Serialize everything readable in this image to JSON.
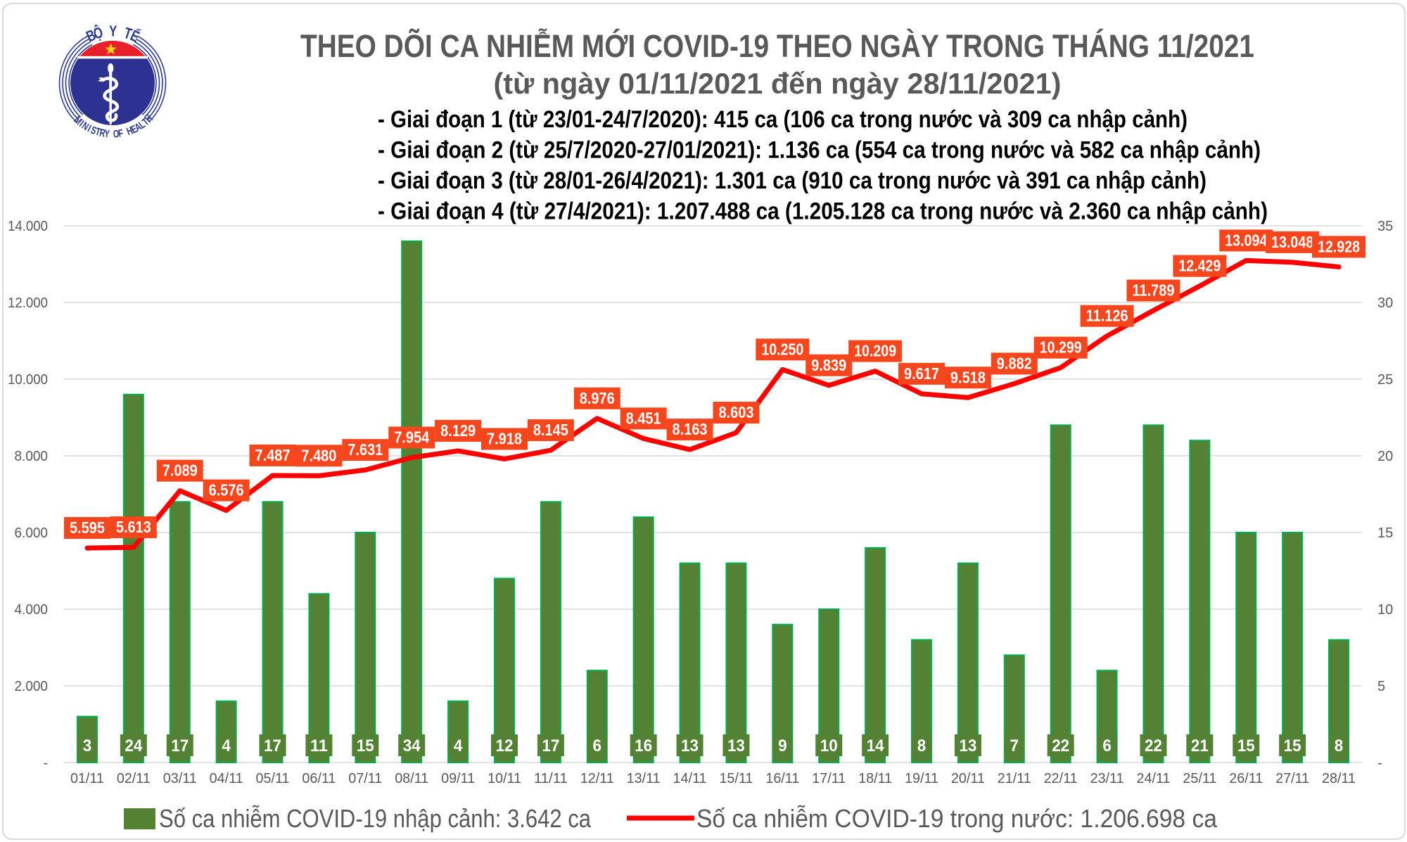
{
  "window": {
    "background": "#ffffff",
    "border_color": "#d9d9d9"
  },
  "logo": {
    "top_text": "BỘ Y TẾ",
    "bottom_text": "MINISTRY OF HEALTH",
    "colors": {
      "ring": "#2b3990",
      "text": "#2b3990",
      "disc": "#2d3191",
      "dome_red": "#e8202a",
      "star_yellow": "#fcd116",
      "emblem_white": "#ffffff"
    }
  },
  "chart_data": {
    "type": "combo",
    "title": "THEO DÕI CA NHIỄM MỚI COVID-19 THEO NGÀY TRONG THÁNG 11/2021",
    "subtitle": "(từ ngày 01/11/2021 đến ngày 28/11/2021)",
    "annotations": [
      "- Giai đoạn 1 (từ 23/01-24/7/2020): 415 ca (106 ca trong nước và 309 ca nhập cảnh)",
      "- Giai đoạn 2 (từ 25/7/2020-27/01/2021): 1.136 ca (554 ca trong nước và 582 ca nhập cảnh)",
      "- Giai đoạn 3 (từ 28/01-26/4/2021): 1.301 ca (910 ca trong nước và 391 ca nhập cảnh)",
      "- Giai đoạn 4 (từ 27/4/2021): 1.207.488 ca (1.205.128 ca trong nước và 2.360 ca nhập cảnh)"
    ],
    "categories": [
      "01/11",
      "02/11",
      "03/11",
      "04/11",
      "05/11",
      "06/11",
      "07/11",
      "08/11",
      "09/11",
      "10/11",
      "11/11",
      "12/11",
      "13/11",
      "14/11",
      "15/11",
      "16/11",
      "17/11",
      "18/11",
      "19/11",
      "20/11",
      "21/11",
      "22/11",
      "23/11",
      "24/11",
      "25/11",
      "26/11",
      "27/11",
      "28/11"
    ],
    "series": [
      {
        "name": "Số ca nhiễm COVID-19 nhập cảnh: 3.642 ca",
        "type": "bar",
        "axis": "right",
        "color": "#548235",
        "border_color": "#00b050",
        "label_text_color": "#ffffff",
        "values": [
          3,
          24,
          17,
          4,
          17,
          11,
          15,
          34,
          4,
          12,
          17,
          6,
          16,
          13,
          13,
          9,
          10,
          14,
          8,
          13,
          7,
          22,
          6,
          22,
          21,
          15,
          15,
          8
        ]
      },
      {
        "name": "Số ca nhiễm COVID-19 trong nước: 1.206.698 ca",
        "type": "line",
        "axis": "left",
        "color": "#ff0000",
        "label_box_color": "#f5461d",
        "label_text_color": "#ffffff",
        "values": [
          5595,
          5613,
          7089,
          6576,
          7487,
          7480,
          7631,
          7954,
          8129,
          7918,
          8145,
          8976,
          8451,
          8163,
          8603,
          10250,
          9839,
          10209,
          9617,
          9518,
          9882,
          10299,
          11126,
          11789,
          12429,
          13094,
          13048,
          12928
        ]
      }
    ],
    "axes": {
      "left": {
        "min": 0,
        "max": 14000,
        "step": 2000,
        "tick_labels": [
          "-",
          "2.000",
          "4.000",
          "6.000",
          "8.000",
          "10.000",
          "12.000",
          "14.000"
        ]
      },
      "right": {
        "min": 0,
        "max": 35,
        "step": 5,
        "tick_labels": [
          "-",
          "5",
          "10",
          "15",
          "20",
          "25",
          "30",
          "35"
        ]
      }
    },
    "grid": true,
    "legend_position": "bottom",
    "gridline_color": "#d9d9d9",
    "tick_text_color": "#595959"
  }
}
